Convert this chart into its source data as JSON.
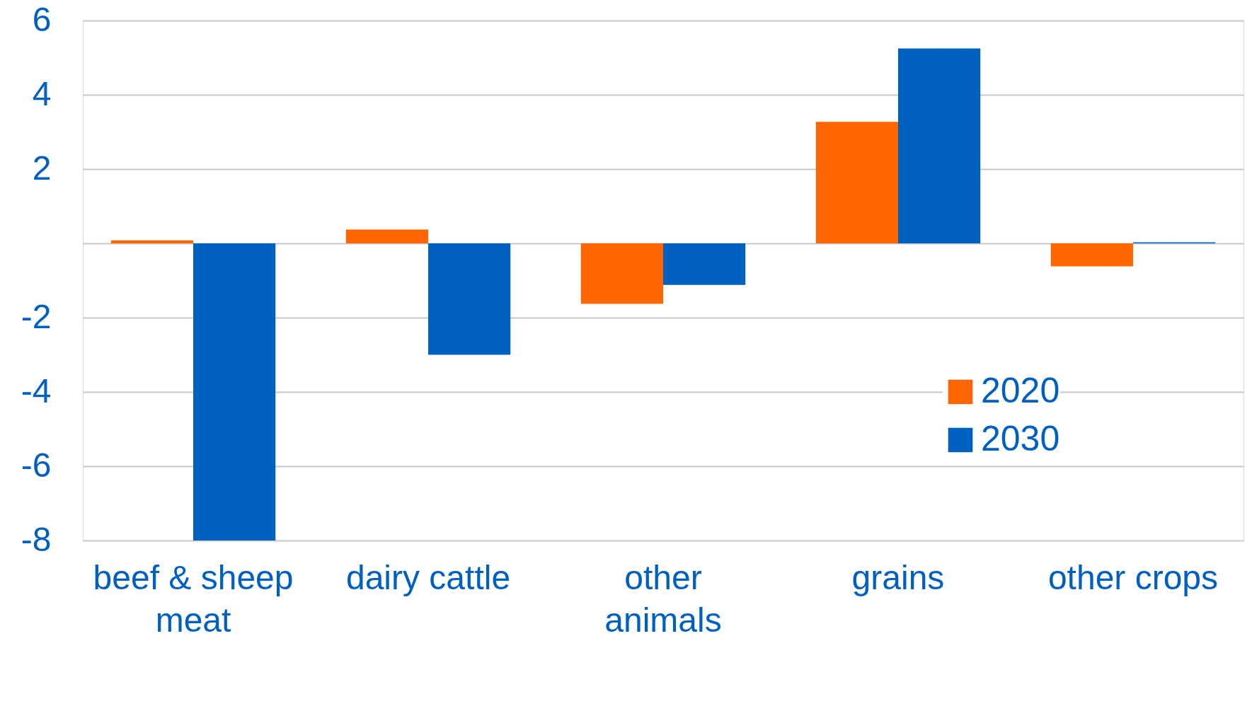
{
  "chart_data": {
    "type": "bar",
    "categories": [
      "beef & sheep meat",
      "dairy cattle",
      "other animals",
      "grains",
      "other crops"
    ],
    "series": [
      {
        "name": "2020",
        "color": "#ff6600",
        "values": [
          0.08,
          0.37,
          -1.63,
          3.27,
          -0.62
        ]
      },
      {
        "name": "2030",
        "color": "#0060c0",
        "values": [
          -8.0,
          -3.0,
          -1.12,
          5.25,
          0.03
        ]
      }
    ],
    "ylim": [
      -8,
      6
    ],
    "yticks": [
      6,
      4,
      2,
      {
        "value": 0,
        "label": null
      },
      -2,
      -4,
      -6,
      -8
    ],
    "grid": "y",
    "legend": "right"
  }
}
